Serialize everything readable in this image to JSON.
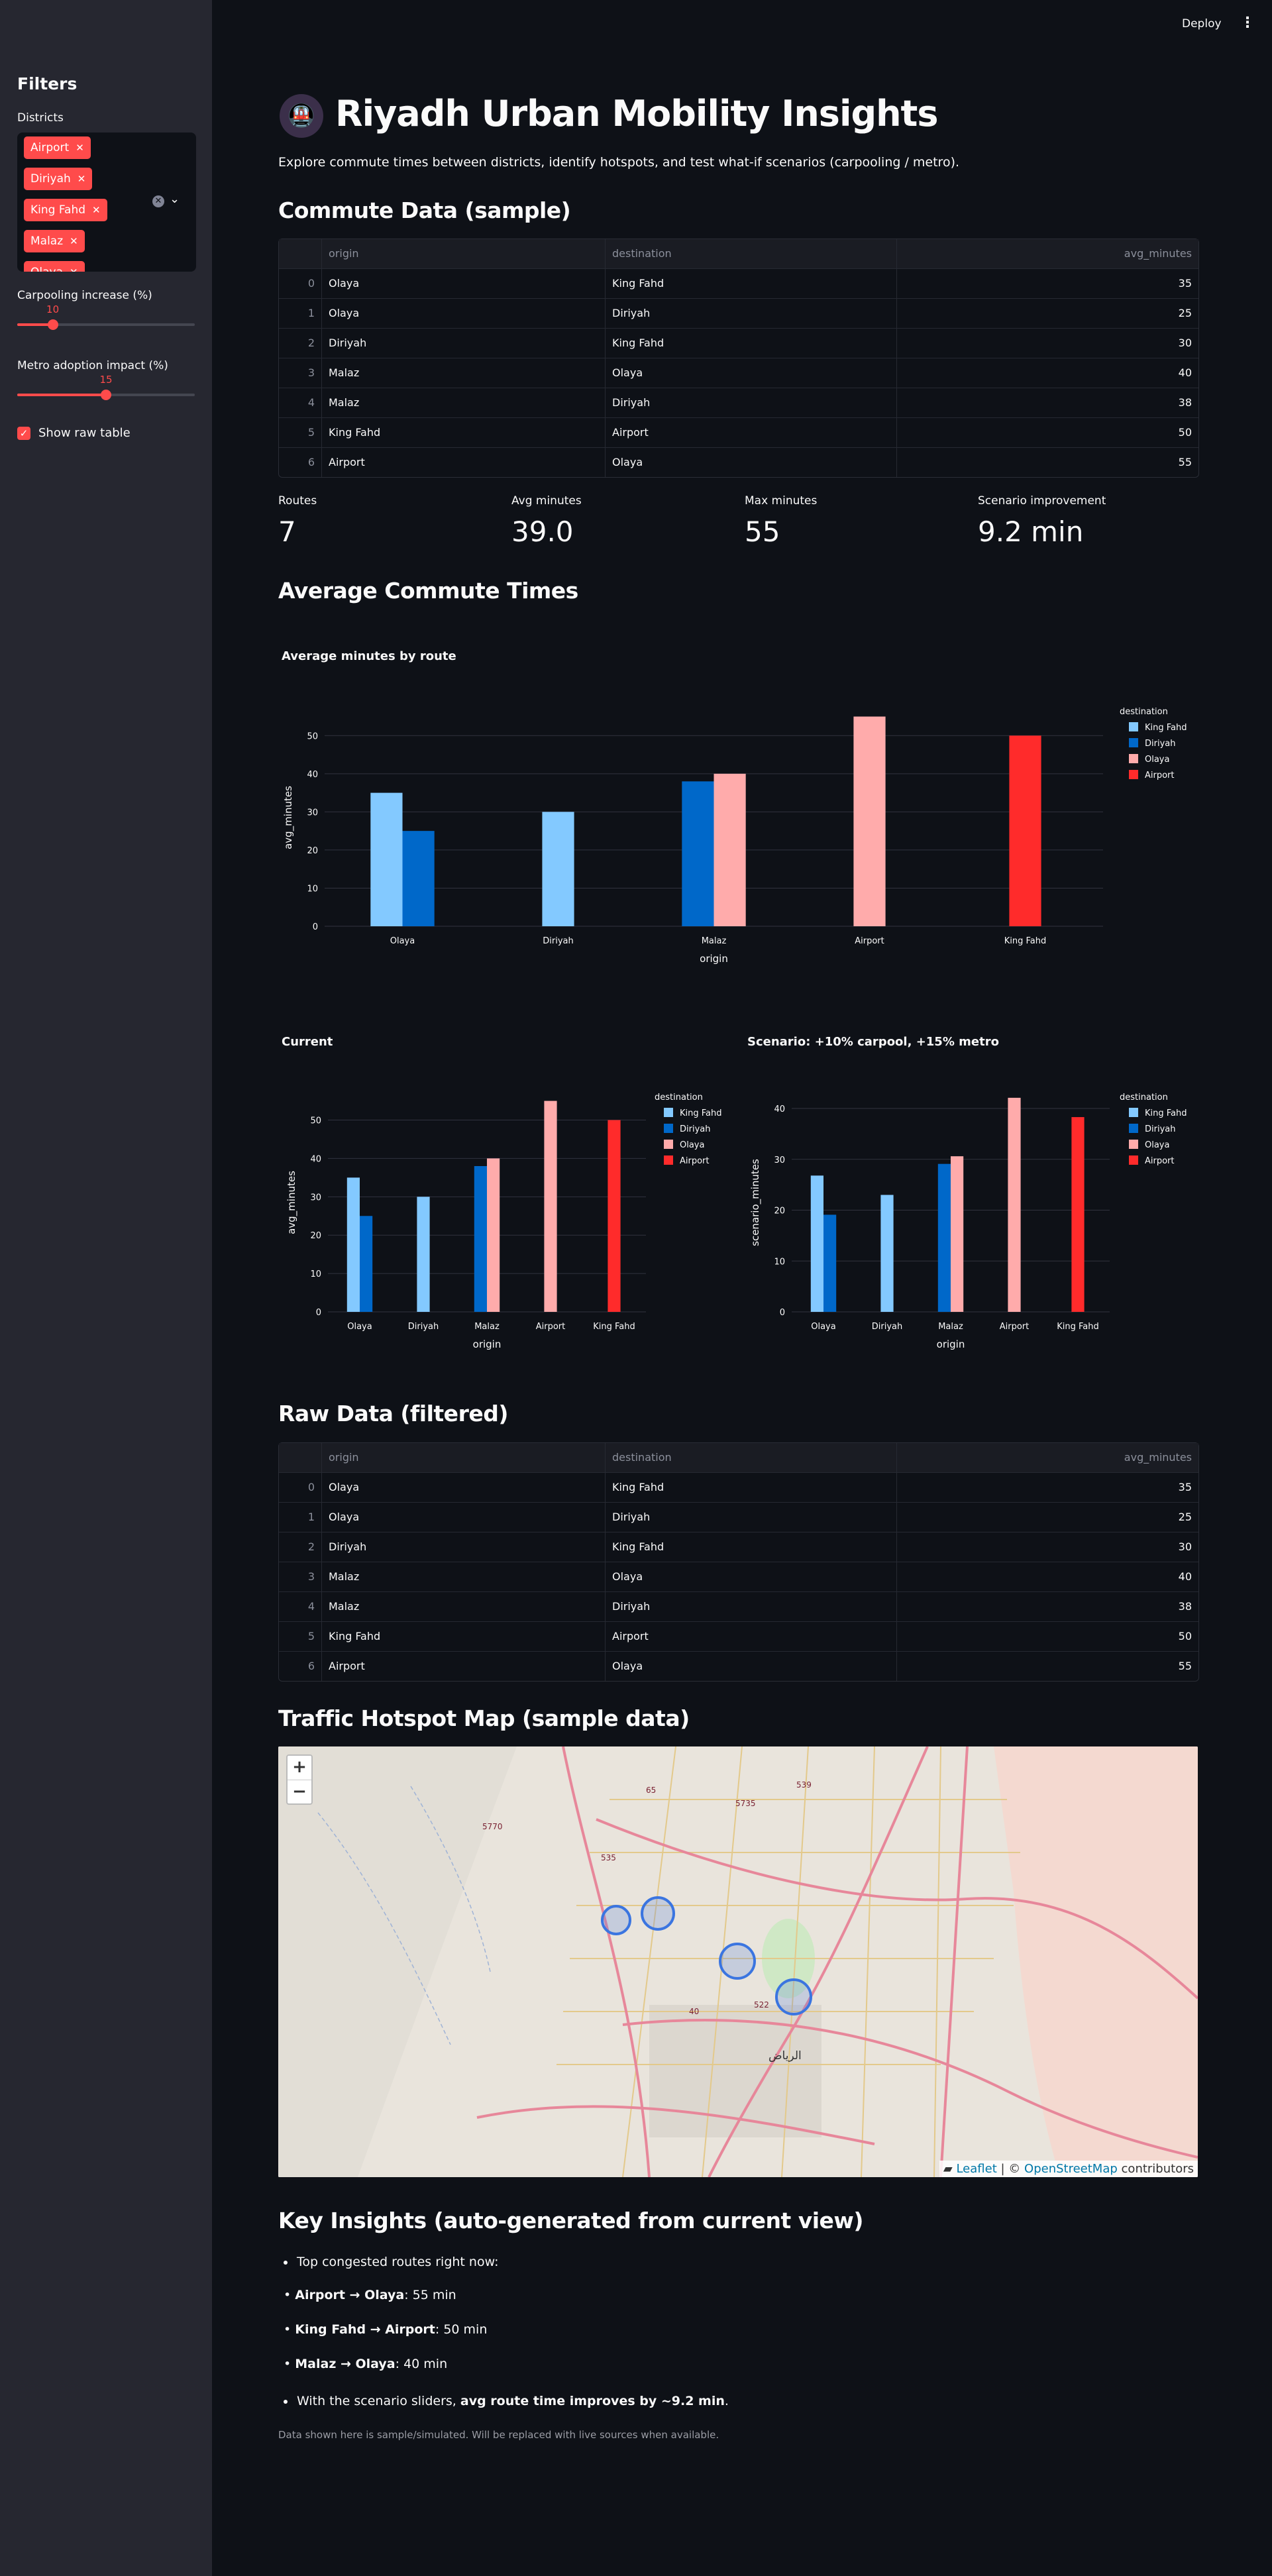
{
  "header": {
    "deploy_label": "Deploy",
    "menu_icon": "more-vertical-icon"
  },
  "sidebar": {
    "title": "Filters",
    "districts_label": "Districts",
    "selected_districts": [
      "Airport",
      "Diriyah",
      "King Fahd",
      "Malaz",
      "Olaya"
    ],
    "carpool_label": "Carpooling increase (%)",
    "carpool_value": 10,
    "carpool_max": 50,
    "metro_label": "Metro adoption impact (%)",
    "metro_value": 15,
    "metro_max": 30,
    "show_raw_label": "Show raw table",
    "show_raw_checked": true
  },
  "page": {
    "logo_icon": "metro-train-icon",
    "title": "Riyadh Urban Mobility Insights",
    "subtitle": "Explore commute times between districts, identify hotspots, and test what-if scenarios (carpooling / metro).",
    "commute_heading": "Commute Data (sample)",
    "avg_heading": "Average Commute Times",
    "raw_heading": "Raw Data (filtered)",
    "map_heading": "Traffic Hotspot Map (sample data)",
    "insights_heading": "Key Insights (auto-generated from current view)"
  },
  "table": {
    "columns": [
      "",
      "origin",
      "destination",
      "avg_minutes"
    ],
    "rows": [
      [
        "0",
        "Olaya",
        "King Fahd",
        "35"
      ],
      [
        "1",
        "Olaya",
        "Diriyah",
        "25"
      ],
      [
        "2",
        "Diriyah",
        "King Fahd",
        "30"
      ],
      [
        "3",
        "Malaz",
        "Olaya",
        "40"
      ],
      [
        "4",
        "Malaz",
        "Diriyah",
        "38"
      ],
      [
        "5",
        "King Fahd",
        "Airport",
        "50"
      ],
      [
        "6",
        "Airport",
        "Olaya",
        "55"
      ]
    ]
  },
  "metrics": [
    {
      "label": "Routes",
      "value": "7"
    },
    {
      "label": "Avg minutes",
      "value": "39.0"
    },
    {
      "label": "Max minutes",
      "value": "55"
    },
    {
      "label": "Scenario improvement",
      "value": "9.2 min"
    }
  ],
  "colors": {
    "King Fahd": "#83c9ff",
    "Diriyah": "#0068c9",
    "Olaya": "#ffabab",
    "Airport": "#ff2b2b",
    "accent": "#ff4b4b"
  },
  "chart_data": [
    {
      "type": "bar",
      "title": "Average minutes by route",
      "xlabel": "origin",
      "ylabel": "avg_minutes",
      "categories": [
        "Olaya",
        "Diriyah",
        "Malaz",
        "Airport",
        "King Fahd"
      ],
      "legend_title": "destination",
      "legend_position": "right",
      "series": [
        {
          "name": "King Fahd",
          "values": [
            35,
            30,
            null,
            null,
            null
          ]
        },
        {
          "name": "Diriyah",
          "values": [
            25,
            null,
            38,
            null,
            null
          ]
        },
        {
          "name": "Olaya",
          "values": [
            null,
            null,
            40,
            55,
            null
          ]
        },
        {
          "name": "Airport",
          "values": [
            null,
            null,
            null,
            null,
            50
          ]
        }
      ],
      "yticks": [
        0,
        10,
        20,
        30,
        40,
        50
      ],
      "ylim": [
        0,
        57
      ],
      "grid": true
    },
    {
      "type": "bar",
      "title": "Current",
      "xlabel": "origin",
      "ylabel": "avg_minutes",
      "categories": [
        "Olaya",
        "Diriyah",
        "Malaz",
        "Airport",
        "King Fahd"
      ],
      "legend_title": "destination",
      "legend_position": "right",
      "series": [
        {
          "name": "King Fahd",
          "values": [
            35,
            30,
            null,
            null,
            null
          ]
        },
        {
          "name": "Diriyah",
          "values": [
            25,
            null,
            38,
            null,
            null
          ]
        },
        {
          "name": "Olaya",
          "values": [
            null,
            null,
            40,
            55,
            null
          ]
        },
        {
          "name": "Airport",
          "values": [
            null,
            null,
            null,
            null,
            50
          ]
        }
      ],
      "yticks": [
        0,
        10,
        20,
        30,
        40,
        50
      ],
      "ylim": [
        0,
        57
      ],
      "grid": true
    },
    {
      "type": "bar",
      "title": "Scenario: +10% carpool, +15% metro",
      "xlabel": "origin",
      "ylabel": "scenario_minutes",
      "categories": [
        "Olaya",
        "Diriyah",
        "Malaz",
        "Airport",
        "King Fahd"
      ],
      "legend_title": "destination",
      "legend_position": "right",
      "series": [
        {
          "name": "King Fahd",
          "values": [
            26.8,
            23,
            null,
            null,
            null
          ]
        },
        {
          "name": "Diriyah",
          "values": [
            19.1,
            null,
            29.1,
            null,
            null
          ]
        },
        {
          "name": "Olaya",
          "values": [
            null,
            null,
            30.6,
            42.1,
            null
          ]
        },
        {
          "name": "Airport",
          "values": [
            null,
            null,
            null,
            null,
            38.3
          ]
        }
      ],
      "yticks": [
        0,
        10,
        20,
        30,
        40
      ],
      "ylim": [
        0,
        43
      ],
      "grid": true
    }
  ],
  "map": {
    "road_labels": [
      "65",
      "539",
      "5735",
      "5770",
      "535",
      "40",
      "522"
    ],
    "city_label": "الرياض",
    "zoom_in": "+",
    "zoom_out": "−",
    "attr_leaflet": "Leaflet",
    "attr_sep": "| ©",
    "attr_osm": "OpenStreetMap",
    "attr_contrib": "contributors"
  },
  "insights": {
    "intro": "Top congested routes right now:",
    "routes": [
      {
        "route": "Airport → Olaya",
        "value": ": 55 min"
      },
      {
        "route": "King Fahd → Airport",
        "value": ": 50 min"
      },
      {
        "route": "Malaz → Olaya",
        "value": ": 40 min"
      }
    ],
    "scenario_prefix": "With the scenario sliders, ",
    "scenario_bold": "avg route time improves by ~9.2 min",
    "scenario_suffix": ".",
    "footnote": "Data shown here is sample/simulated. Will be replaced with live sources when available."
  }
}
